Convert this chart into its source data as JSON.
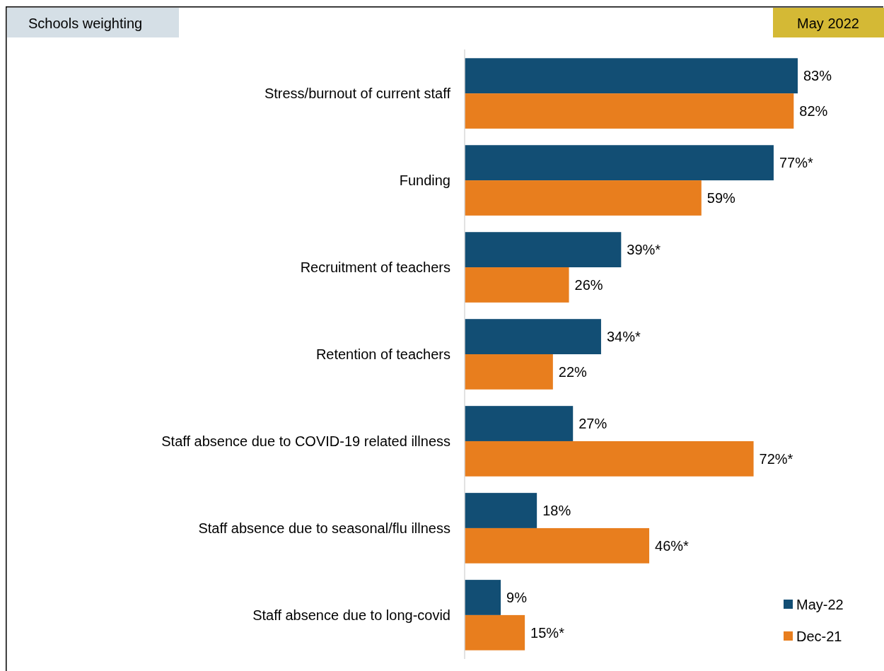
{
  "chart_data": {
    "type": "bar",
    "orientation": "horizontal",
    "title": "Schools weighting",
    "subtitle": "May 2022",
    "categories": [
      "Stress/burnout of current staff",
      "Funding",
      "Recruitment of teachers",
      "Retention of teachers",
      "Staff absence due to COVID-19 related illness",
      "Staff absence due to seasonal/flu illness",
      "Staff absence due to long-covid"
    ],
    "series": [
      {
        "name": "May-22",
        "color": "#124e74",
        "values": [
          83,
          77,
          39,
          34,
          27,
          18,
          9
        ],
        "value_labels": [
          "83%",
          "77%*",
          "39%*",
          "34%*",
          "27%",
          "18%",
          "9%"
        ]
      },
      {
        "name": "Dec-21",
        "color": "#e87e1e",
        "values": [
          82,
          59,
          26,
          22,
          72,
          46,
          15
        ],
        "value_labels": [
          "82%",
          "59%",
          "26%",
          "22%",
          "72%*",
          "46%*",
          "15%*"
        ]
      }
    ],
    "legend": "bottom right",
    "tick_labels": "y"
  }
}
